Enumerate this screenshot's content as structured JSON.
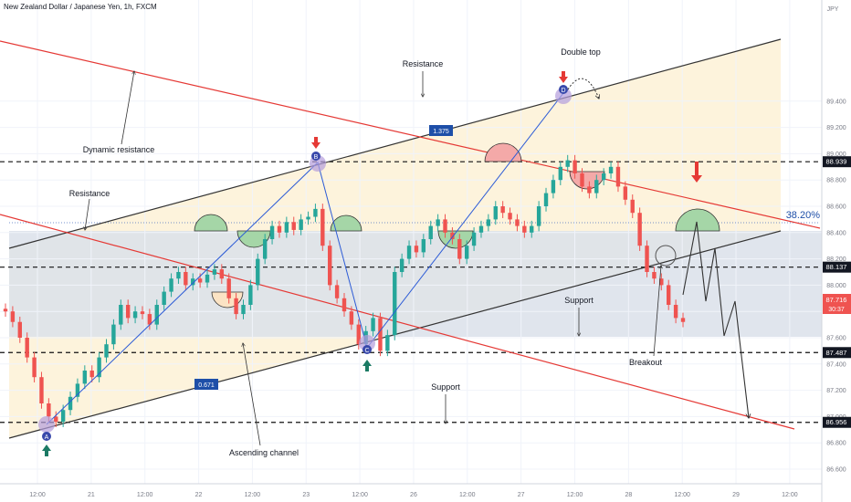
{
  "header": {
    "title": "New Zealand Dollar / Japanese Yen, 1h, FXCM"
  },
  "price_axis": {
    "unit": "JPY",
    "ticks": [
      "89.400",
      "89.200",
      "89.000",
      "88.800",
      "88.600",
      "88.400",
      "88.200",
      "88.000",
      "87.800",
      "87.600",
      "87.400",
      "87.200",
      "87.000",
      "86.800",
      "86.600"
    ],
    "price_labels": [
      {
        "value": "88.939",
        "price": 88.939
      },
      {
        "value": "88.137",
        "price": 88.137
      },
      {
        "value": "87.487",
        "price": 87.487
      },
      {
        "value": "86.956",
        "price": 86.956
      }
    ],
    "current": {
      "value": "87.716",
      "countdown": "30:37",
      "price": 87.716
    }
  },
  "time_axis": {
    "ticks": [
      "12:00",
      "21",
      "12:00",
      "22",
      "12:00",
      "23",
      "12:00",
      "26",
      "12:00",
      "27",
      "12:00",
      "28",
      "12:00",
      "29",
      "12:00"
    ]
  },
  "colors": {
    "bull": "#26a69a",
    "bear": "#ef5350",
    "red_line": "#e53935",
    "channel_fill": "#fdf3dc",
    "band_fill": "#d7dde9",
    "marker": "#b39ddb",
    "green_arrow": "#1b7a64",
    "red_arrow": "#e53935",
    "fib": "#1e4fa8"
  },
  "annotations": {
    "resistance_top": "Resistance",
    "double_top": "Double top",
    "dynamic_resistance": "Dynamic resistance",
    "resistance_left": "Resistance",
    "support_mid": "Support",
    "breakout": "Breakout",
    "support_bottom": "Support",
    "ascending_channel": "Ascending channel",
    "fib_level": "38.20%",
    "ratio_upper": "1.375",
    "ratio_lower": "0.671",
    "point_a": "A",
    "point_b": "B",
    "point_c": "C",
    "point_d": "D"
  },
  "chart_data": {
    "type": "candlestick",
    "title": "New Zealand Dollar / Japanese Yen, 1h, FXCM",
    "symbol": "NZD/JPY",
    "timeframe": "1h",
    "ylabel": "JPY",
    "ylim": [
      86.6,
      89.45
    ],
    "horizontal_levels": [
      88.939,
      88.137,
      87.487,
      86.956
    ],
    "fib_retracement": {
      "level": "38.20%",
      "price": 88.18
    },
    "abcd_pattern": [
      {
        "label": "A",
        "price": 86.95
      },
      {
        "label": "B",
        "price": 88.56
      },
      {
        "label": "C",
        "price": 87.47
      },
      {
        "label": "D",
        "price": 88.96
      }
    ],
    "abcd_ratios": [
      "1.375",
      "0.671"
    ],
    "current_price": 87.716,
    "close_series": [
      87.8,
      87.72,
      87.6,
      87.45,
      87.3,
      87.1,
      87.0,
      86.96,
      87.05,
      87.15,
      87.25,
      87.35,
      87.3,
      87.45,
      87.55,
      87.7,
      87.85,
      87.75,
      87.8,
      87.78,
      87.7,
      87.85,
      87.95,
      88.05,
      88.1,
      88.0,
      88.05,
      88.02,
      88.08,
      88.12,
      88.05,
      87.9,
      87.78,
      87.85,
      88.0,
      88.2,
      88.35,
      88.45,
      88.4,
      88.48,
      88.42,
      88.5,
      88.52,
      88.58,
      88.3,
      88.0,
      87.9,
      87.8,
      87.7,
      87.55,
      87.65,
      87.75,
      87.5,
      87.62,
      88.1,
      88.2,
      88.3,
      88.25,
      88.35,
      88.45,
      88.5,
      88.4,
      88.35,
      88.2,
      88.3,
      88.4,
      88.45,
      88.5,
      88.6,
      88.55,
      88.5,
      88.45,
      88.4,
      88.45,
      88.6,
      88.7,
      88.8,
      88.9,
      88.95,
      88.85,
      88.75,
      88.7,
      88.8,
      88.85,
      88.9,
      88.75,
      88.65,
      88.55,
      88.3,
      88.1,
      88.05,
      88.0,
      87.85,
      87.75,
      87.72
    ],
    "legend": []
  }
}
